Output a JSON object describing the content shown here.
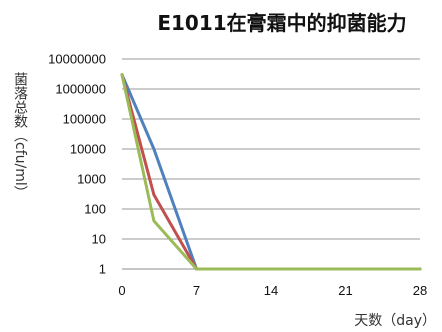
{
  "chart_data": {
    "type": "line",
    "title": "E1011在膏霜中的抑菌能力",
    "xlabel": "天数（day）",
    "ylabel": "菌落总数（cfu/ml）",
    "yscale": "log",
    "xlim": [
      0,
      28
    ],
    "ylim": [
      1,
      10000000
    ],
    "x_ticks": [
      0,
      7,
      14,
      21,
      28
    ],
    "y_ticks": [
      1,
      10,
      100,
      1000,
      10000,
      100000,
      1000000,
      10000000
    ],
    "y_tick_labels": [
      "1",
      "10",
      "100",
      "1000",
      "10000",
      "100000",
      "1000000",
      "10000000"
    ],
    "grid": "horizontal",
    "legend": "none",
    "series": [
      {
        "color": "#4f81bd",
        "points": [
          [
            0,
            3000000
          ],
          [
            3,
            10000
          ],
          [
            7,
            1
          ],
          [
            14,
            1
          ],
          [
            21,
            1
          ],
          [
            28,
            1
          ]
        ]
      },
      {
        "color": "#c0504d",
        "points": [
          [
            0,
            3000000
          ],
          [
            3,
            300
          ],
          [
            7,
            1
          ],
          [
            14,
            1
          ],
          [
            21,
            1
          ],
          [
            28,
            1
          ]
        ]
      },
      {
        "color": "#9bbb59",
        "points": [
          [
            0,
            3000000
          ],
          [
            3,
            40
          ],
          [
            7,
            1
          ],
          [
            14,
            1
          ],
          [
            21,
            1
          ],
          [
            28,
            1
          ]
        ]
      }
    ]
  }
}
